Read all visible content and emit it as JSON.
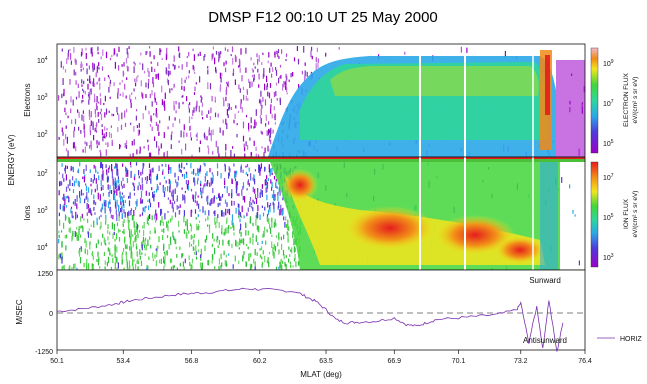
{
  "chart_data": {
    "type": "heatmap",
    "title": "DMSP F12  00:10 UT  25 May 2000",
    "x": {
      "label": "MLAT (deg)",
      "ticks": [
        "50.1",
        "53.4",
        "56.8",
        "60.2",
        "63.5",
        "66.9",
        "70.1",
        "73.2",
        "76.4"
      ],
      "range": [
        50.1,
        76.4
      ]
    },
    "panels": [
      {
        "name": "Electrons",
        "ylabel": "Electrons",
        "yticks": [
          "10",
          "10",
          "10"
        ],
        "yexp": [
          "4",
          "3",
          "2"
        ],
        "colorbar": {
          "label_line1": "ELECTRON FLUX",
          "label_line2": "eV/(cm² s sr eV)",
          "ticks": [
            "10",
            "10",
            "10"
          ],
          "exp": [
            "9",
            "7",
            "5"
          ]
        }
      },
      {
        "name": "Ions",
        "ylabel": "Ions",
        "yticks": [
          "10",
          "10",
          "10"
        ],
        "yexp": [
          "2",
          "3",
          "4"
        ],
        "colorbar": {
          "label_line1": "ION FLUX",
          "label_line2": "eV/(cm² s sr eV)",
          "ticks": [
            "10",
            "10",
            "10"
          ],
          "exp": [
            "7",
            "5",
            "3"
          ]
        }
      },
      {
        "name": "drift",
        "type": "line",
        "ylabel": "M/SEC",
        "yticks": [
          "1250",
          "0",
          "-1250"
        ],
        "ylim": [
          -1250,
          1250
        ],
        "annotations": [
          "Sunward",
          "Antisunward"
        ],
        "legend": "HORIZ",
        "series": [
          {
            "x": [
              50.1,
              51.0,
              52.0,
              53.0,
              53.4,
              54.0,
              55.0,
              56.0,
              56.8,
              57.5,
              58.5,
              59.5,
              60.2,
              61.0,
              62.0,
              62.5,
              63.0,
              63.5,
              64.0,
              64.5,
              65.0,
              66.0,
              66.9,
              67.5,
              68.0,
              68.5,
              69.0,
              70.1,
              71.0,
              72.0,
              73.0,
              73.2,
              73.6,
              74.0,
              74.3,
              74.6,
              75.0,
              75.3
            ],
            "y": [
              50,
              100,
              180,
              280,
              330,
              400,
              480,
              560,
              600,
              620,
              680,
              740,
              720,
              700,
              650,
              500,
              350,
              100,
              -200,
              -300,
              -280,
              -250,
              -150,
              -350,
              -400,
              -300,
              -200,
              -150,
              -100,
              -50,
              100,
              300,
              -900,
              200,
              -1100,
              400,
              -1200,
              -300
            ]
          }
        ]
      }
    ]
  }
}
